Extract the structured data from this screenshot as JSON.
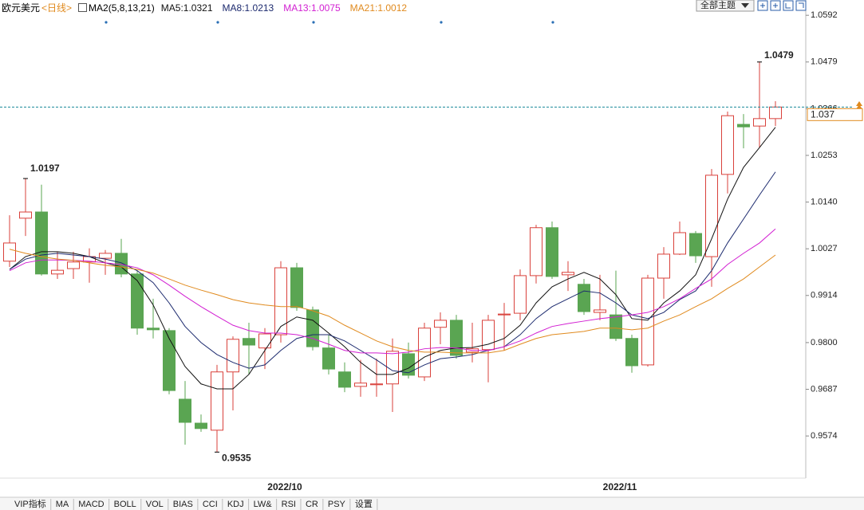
{
  "header": {
    "instrument": "欧元美元",
    "period": "<日线>",
    "ma_label": "MA2(5,8,13,21)",
    "theme_button": "全部主题"
  },
  "tabs": [
    "VIP指标",
    "MA",
    "MACD",
    "BOLL",
    "VOL",
    "BIAS",
    "CCI",
    "KDJ",
    "LW&",
    "RSI",
    "CR",
    "PSY",
    "设置"
  ],
  "chart_data": {
    "type": "candlestick",
    "up_color": "#d9413b",
    "down_color": "#5aa552",
    "price_line_color": "#1a8a9a",
    "categories": [
      null,
      null,
      null,
      null,
      null,
      null,
      null,
      null,
      null,
      null,
      null,
      null,
      null,
      null,
      null,
      null,
      null,
      "2022/10",
      null,
      null,
      null,
      null,
      null,
      null,
      null,
      null,
      null,
      null,
      null,
      null,
      null,
      null,
      null,
      null,
      null,
      null,
      null,
      null,
      "2022/11",
      null,
      null,
      null,
      null,
      null,
      null,
      null,
      null,
      null,
      null
    ],
    "open": [
      0.9997,
      1.0101,
      1.0116,
      0.9966,
      0.9979,
      0.9995,
      1.0004,
      1.0016,
      0.9966,
      0.9835,
      0.9829,
      0.9663,
      0.9605,
      0.9588,
      0.9729,
      0.981,
      0.9787,
      0.9819,
      0.9981,
      0.9879,
      0.9787,
      0.9729,
      0.9694,
      0.9698,
      0.97,
      0.9773,
      0.9717,
      0.9837,
      0.9854,
      0.9777,
      0.9783,
      0.9867,
      0.9871,
      0.9962,
      1.0078,
      0.9964,
      0.9941,
      0.9873,
      0.9867,
      0.981,
      0.9746,
      0.9956,
      1.0014,
      1.0064,
      1.0008,
      1.0207,
      1.0328,
      1.0324,
      1.0342
    ],
    "high": [
      1.0108,
      1.0197,
      1.0182,
      1.002,
      1.002,
      1.0028,
      1.0024,
      1.0051,
      0.9974,
      0.9906,
      0.9835,
      0.9707,
      0.9626,
      0.9746,
      0.9815,
      0.9848,
      0.9835,
      0.9997,
      0.9993,
      0.9887,
      0.9819,
      0.9752,
      0.9758,
      0.9761,
      0.981,
      0.98,
      0.9848,
      0.9873,
      0.9867,
      0.9848,
      0.9867,
      0.9896,
      0.9977,
      1.0085,
      1.0093,
      0.9997,
      0.9954,
      0.9964,
      0.9974,
      0.9819,
      0.9964,
      1.0031,
      1.0093,
      1.007,
      1.022,
      1.0359,
      1.0353,
      1.0479,
      1.0384
    ],
    "low": [
      0.9983,
      1.0058,
      0.9962,
      0.9954,
      0.9954,
      0.9945,
      0.9964,
      0.9958,
      0.9819,
      0.981,
      0.9675,
      0.9553,
      0.9584,
      0.9535,
      0.9636,
      0.9723,
      0.9736,
      0.98,
      0.9877,
      0.9781,
      0.9723,
      0.968,
      0.9669,
      0.9669,
      0.9632,
      0.9713,
      0.9707,
      0.9796,
      0.9761,
      0.9752,
      0.9704,
      0.9781,
      0.9854,
      0.9943,
      0.9954,
      0.9925,
      0.9867,
      0.9854,
      0.9804,
      0.9727,
      0.9742,
      0.9906,
      1.0012,
      0.9993,
      0.9935,
      1.0161,
      1.027,
      1.0272,
      1.0324
    ],
    "close": [
      1.0041,
      1.0116,
      0.9966,
      0.9975,
      0.9995,
      1.0008,
      1.0016,
      0.9966,
      0.9835,
      0.9831,
      0.9684,
      0.9607,
      0.9592,
      0.9729,
      0.9808,
      0.9794,
      0.9821,
      0.9981,
      0.9885,
      0.979,
      0.9736,
      0.9692,
      0.9702,
      0.97,
      0.9779,
      0.9721,
      0.9835,
      0.9854,
      0.9769,
      0.9785,
      0.9854,
      0.9869,
      0.9962,
      1.0078,
      0.996,
      0.997,
      0.9875,
      0.9879,
      0.981,
      0.9744,
      0.9956,
      1.0014,
      1.0066,
      1.001,
      1.0205,
      1.0349,
      1.0322,
      1.0342,
      1.037
    ],
    "series": [
      {
        "name": "MA5",
        "color": "#111111",
        "values": [
          0.9977,
          1.0008,
          1.002,
          1.002,
          1.0016,
          1.0008,
          0.9993,
          0.9983,
          0.995,
          0.9891,
          0.981,
          0.9742,
          0.97,
          0.9688,
          0.9688,
          0.9723,
          0.9781,
          0.9839,
          0.9862,
          0.9854,
          0.9823,
          0.979,
          0.9752,
          0.9723,
          0.9723,
          0.9738,
          0.9765,
          0.9781,
          0.9787,
          0.9788,
          0.9796,
          0.981,
          0.9842,
          0.9896,
          0.9935,
          0.9954,
          0.997,
          0.9954,
          0.9916,
          0.9858,
          0.9854,
          0.9896,
          0.9925,
          0.9964,
          1.0051,
          1.0147,
          1.0224,
          1.0272,
          1.0321
        ]
      },
      {
        "name": "MA8",
        "color": "#1c2a6e",
        "values": [
          0.9977,
          1.0002,
          1.0012,
          1.0016,
          1.0012,
          1.0008,
          1.0002,
          0.9993,
          0.9974,
          0.9945,
          0.9896,
          0.9839,
          0.98,
          0.9771,
          0.9752,
          0.9738,
          0.9746,
          0.9781,
          0.981,
          0.9819,
          0.9819,
          0.9804,
          0.9781,
          0.9758,
          0.9732,
          0.9727,
          0.9746,
          0.9761,
          0.9765,
          0.9771,
          0.9781,
          0.979,
          0.9819,
          0.9858,
          0.9887,
          0.9906,
          0.9925,
          0.992,
          0.9896,
          0.9867,
          0.9858,
          0.9873,
          0.9904,
          0.9925,
          0.9974,
          1.0041,
          1.0099,
          1.0157,
          1.0213
        ]
      },
      {
        "name": "MA13",
        "color": "#d21fd2",
        "values": [
          0.9974,
          0.9993,
          1.0,
          1.0,
          0.9999,
          0.9997,
          0.9993,
          0.9989,
          0.9981,
          0.9964,
          0.9939,
          0.9912,
          0.9887,
          0.9864,
          0.9842,
          0.9829,
          0.9823,
          0.9823,
          0.9819,
          0.981,
          0.9796,
          0.9781,
          0.9775,
          0.9775,
          0.9773,
          0.9777,
          0.9785,
          0.9788,
          0.9787,
          0.9781,
          0.9781,
          0.979,
          0.9804,
          0.9823,
          0.9839,
          0.9846,
          0.9852,
          0.9858,
          0.9862,
          0.9867,
          0.9873,
          0.9887,
          0.9906,
          0.9931,
          0.9954,
          0.9989,
          1.0016,
          1.0041,
          1.0075
        ]
      },
      {
        "name": "MA21",
        "color": "#e08a1e",
        "values": [
          1.0026,
          1.0016,
          1.0008,
          1.0002,
          0.9999,
          0.9993,
          0.9987,
          0.9983,
          0.9977,
          0.9968,
          0.9954,
          0.9939,
          0.9927,
          0.9916,
          0.9904,
          0.9896,
          0.9891,
          0.9887,
          0.9887,
          0.9877,
          0.9864,
          0.9842,
          0.9823,
          0.9804,
          0.979,
          0.9781,
          0.9777,
          0.9777,
          0.9775,
          0.9775,
          0.9775,
          0.9781,
          0.9796,
          0.981,
          0.9819,
          0.9823,
          0.9827,
          0.9835,
          0.9835,
          0.9831,
          0.9835,
          0.9852,
          0.9867,
          0.9887,
          0.9906,
          0.9931,
          0.9954,
          0.9983,
          1.0012
        ]
      }
    ],
    "ylim": [
      0.9472,
      1.0629
    ],
    "yticks": [
      1.0592,
      1.0479,
      1.0366,
      1.0253,
      {
        "value": 1.014,
        "label": "1.0140"
      },
      1.0027,
      0.9914,
      {
        "value": 0.98,
        "label": "0.9800"
      },
      0.9687,
      0.9574
    ]
  }
}
